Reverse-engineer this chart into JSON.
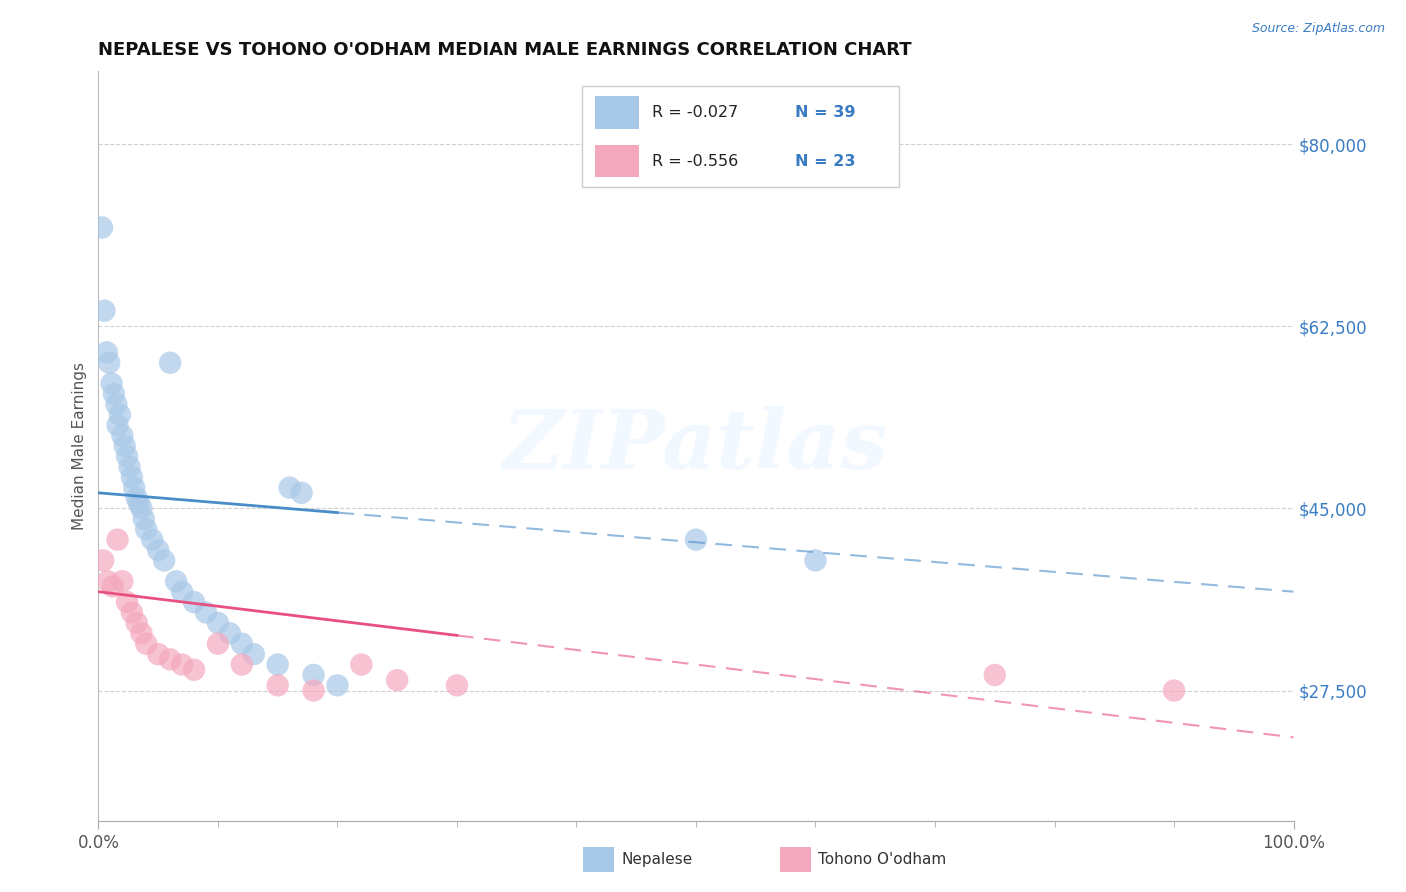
{
  "title": "NEPALESE VS TOHONO O'ODHAM MEDIAN MALE EARNINGS CORRELATION CHART",
  "source": "Source: ZipAtlas.com",
  "ylabel": "Median Male Earnings",
  "xlim": [
    0.0,
    100.0
  ],
  "ylim": [
    15000,
    87000
  ],
  "yticks": [
    27500,
    45000,
    62500,
    80000
  ],
  "ytick_labels": [
    "$27,500",
    "$45,000",
    "$62,500",
    "$80,000"
  ],
  "xtick_major": [
    0,
    100
  ],
  "xtick_minor": [
    10,
    20,
    30,
    40,
    50,
    60,
    70,
    80,
    90
  ],
  "xtick_labels": [
    "0.0%",
    "100.0%"
  ],
  "nepalese_color": "#a8c8e8",
  "tohono_color": "#f4a8be",
  "nepalese_line_color": "#4a8cc8",
  "tohono_line_color": "#e85080",
  "watermark_text": "ZIPatlas",
  "legend_r1": "R = -0.027",
  "legend_n1": "N = 39",
  "legend_r2": "R = -0.556",
  "legend_n2": "N = 23",
  "nepalese_x": [
    0.3,
    0.5,
    0.7,
    0.9,
    1.1,
    1.3,
    1.5,
    1.6,
    1.8,
    2.0,
    2.2,
    2.4,
    2.6,
    2.8,
    3.0,
    3.2,
    3.4,
    3.6,
    3.8,
    4.0,
    4.5,
    5.0,
    5.5,
    6.0,
    6.5,
    7.0,
    8.0,
    9.0,
    10.0,
    11.0,
    12.0,
    13.0,
    15.0,
    16.0,
    17.0,
    18.0,
    20.0,
    50.0,
    60.0
  ],
  "nepalese_y": [
    72000,
    64000,
    60000,
    59000,
    57000,
    56000,
    55000,
    53000,
    54000,
    52000,
    51000,
    50000,
    49000,
    48000,
    47000,
    46000,
    45500,
    45000,
    44000,
    43000,
    42000,
    41000,
    40000,
    59000,
    38000,
    37000,
    36000,
    35000,
    34000,
    33000,
    32000,
    31000,
    30000,
    47000,
    46500,
    29000,
    28000,
    42000,
    40000
  ],
  "tohono_x": [
    0.4,
    0.8,
    1.2,
    1.6,
    2.0,
    2.4,
    2.8,
    3.2,
    3.6,
    4.0,
    5.0,
    6.0,
    7.0,
    8.0,
    10.0,
    12.0,
    15.0,
    18.0,
    22.0,
    25.0,
    30.0,
    75.0,
    90.0
  ],
  "tohono_y": [
    40000,
    38000,
    37500,
    42000,
    38000,
    36000,
    35000,
    34000,
    33000,
    32000,
    31000,
    30500,
    30000,
    29500,
    32000,
    30000,
    28000,
    27500,
    30000,
    28500,
    28000,
    29000,
    27500
  ]
}
